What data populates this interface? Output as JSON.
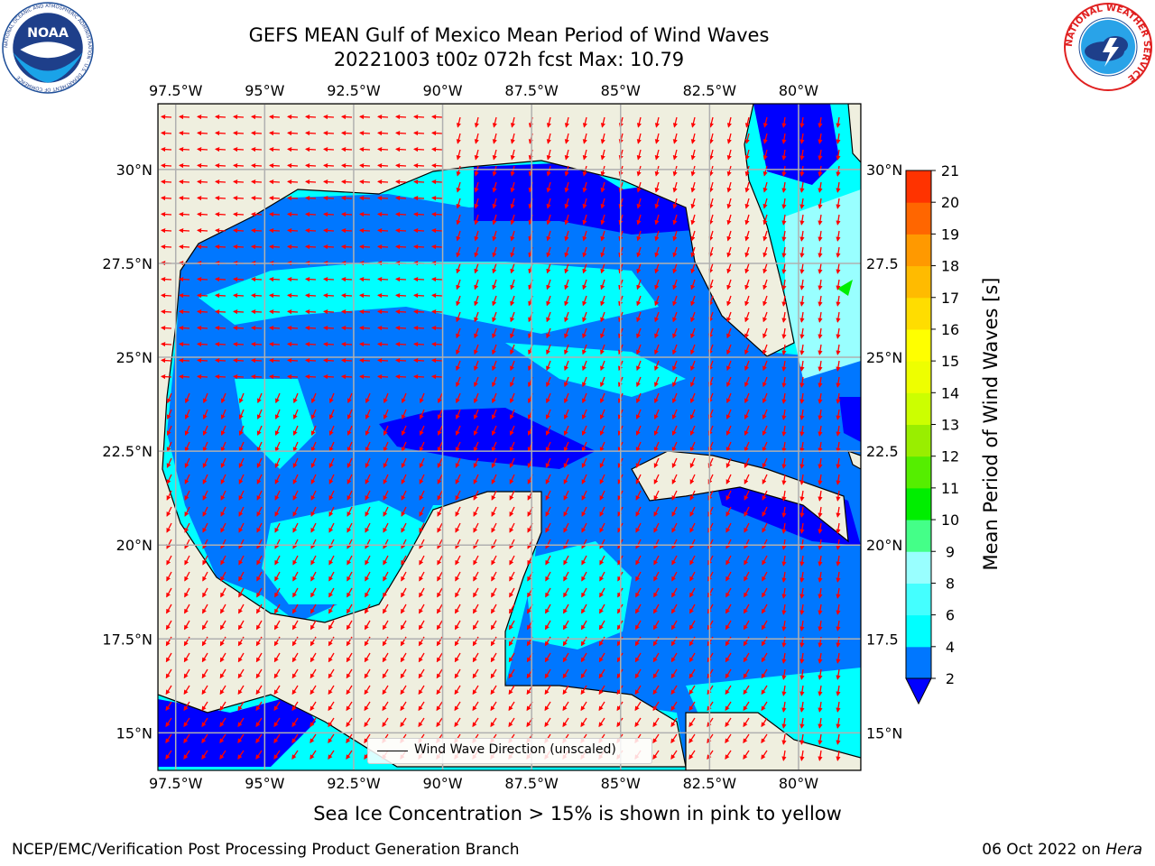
{
  "header": {
    "title_line1": "GEFS MEAN Gulf of Mexico Mean Period of Wind Waves",
    "title_line2": "20221003 t00z 072h fcst   Max: 10.79"
  },
  "logos": {
    "noaa_text": "NOAA",
    "noaa_ring_text": "NATIONAL OCEANIC AND ATMOSPHERIC ADMINISTRATION · U.S. DEPARTMENT OF COMMERCE",
    "nws_ring_text": "NATIONAL WEATHER SERVICE"
  },
  "map": {
    "lon_range": [
      -98.0,
      -78.25
    ],
    "lat_range": [
      14.0,
      31.75
    ],
    "lon_ticks": [
      "97.5°W",
      "95°W",
      "92.5°W",
      "90°W",
      "87.5°W",
      "85°W",
      "82.5°W",
      "80°W"
    ],
    "lon_tick_values": [
      -97.5,
      -95,
      -92.5,
      -90,
      -87.5,
      -85,
      -82.5,
      -80
    ],
    "lat_ticks": [
      "15°N",
      "17.5°N",
      "20°N",
      "22.5°N",
      "25°N",
      "27.5°N",
      "30°N"
    ],
    "lat_tick_values": [
      15,
      17.5,
      20,
      22.5,
      25,
      27.5,
      30
    ],
    "lat_ticks_right": [
      "15°N",
      "17.5",
      "20°N",
      "22.5",
      "25°N",
      "27.5",
      "30°N"
    ],
    "land_color": "#efefdf",
    "grid": true,
    "legend_label": "Wind Wave Direction (unscaled)",
    "arrow_color": "#ff0000"
  },
  "colorbar": {
    "label": "Mean Period of Wind Waves [s]",
    "tick_labels": [
      "2",
      "4",
      "6",
      "8",
      "9",
      "10",
      "11",
      "12",
      "13",
      "14",
      "15",
      "16",
      "17",
      "18",
      "19",
      "20",
      "21"
    ],
    "colors": [
      "#0077ff",
      "#00ffff",
      "#44ffff",
      "#99ffff",
      "#44ff88",
      "#00ee00",
      "#55ee00",
      "#99ee00",
      "#ccff00",
      "#eeff00",
      "#ffff00",
      "#ffdd00",
      "#ffbb00",
      "#ff9900",
      "#ff6600",
      "#ff3300"
    ],
    "under_color": "#0000ff",
    "extend": "min"
  },
  "footer": {
    "ice_note": "Sea Ice Concentration > 15% is shown in pink to yellow",
    "left": "NCEP/EMC/Verification Post Processing Product Generation Branch",
    "right_date": "06 Oct 2022 on ",
    "right_host": "Hera"
  }
}
